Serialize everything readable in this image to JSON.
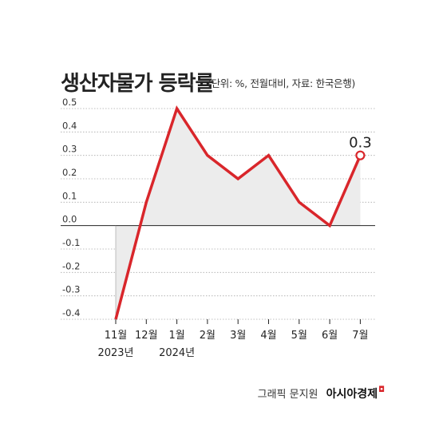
{
  "title": "생산자물가 등락률",
  "subtitle": "(단위: %, 전월대비, 자료: 한국은행)",
  "footer": {
    "credit": "그래픽 문지원",
    "brand": "아시아경제"
  },
  "colors": {
    "line": "#d9262b",
    "fill": "#ececec",
    "axis": "#222222",
    "grid": "#aaaaaa"
  },
  "chart_data": {
    "type": "line",
    "categories": [
      "11월",
      "12월",
      "1월",
      "2월",
      "3월",
      "4월",
      "5월",
      "6월",
      "7월"
    ],
    "year_labels": [
      "2023년",
      "",
      "2024년",
      "",
      "",
      "",
      "",
      "",
      ""
    ],
    "values": [
      -0.4,
      0.1,
      0.5,
      0.3,
      0.2,
      0.3,
      0.1,
      0.0,
      0.3
    ],
    "y_ticks": [
      "0.5",
      "0.4",
      "0.3",
      "0.2",
      "0.1",
      "0.0",
      "-0.1",
      "-0.2",
      "-0.3",
      "-0.4"
    ],
    "y_tick_values": [
      0.5,
      0.4,
      0.3,
      0.2,
      0.1,
      0.0,
      -0.1,
      -0.2,
      -0.3,
      -0.4
    ],
    "ylim": [
      -0.4,
      0.5
    ],
    "annotation": {
      "text": "0.3",
      "index": 8
    },
    "grid": true
  }
}
